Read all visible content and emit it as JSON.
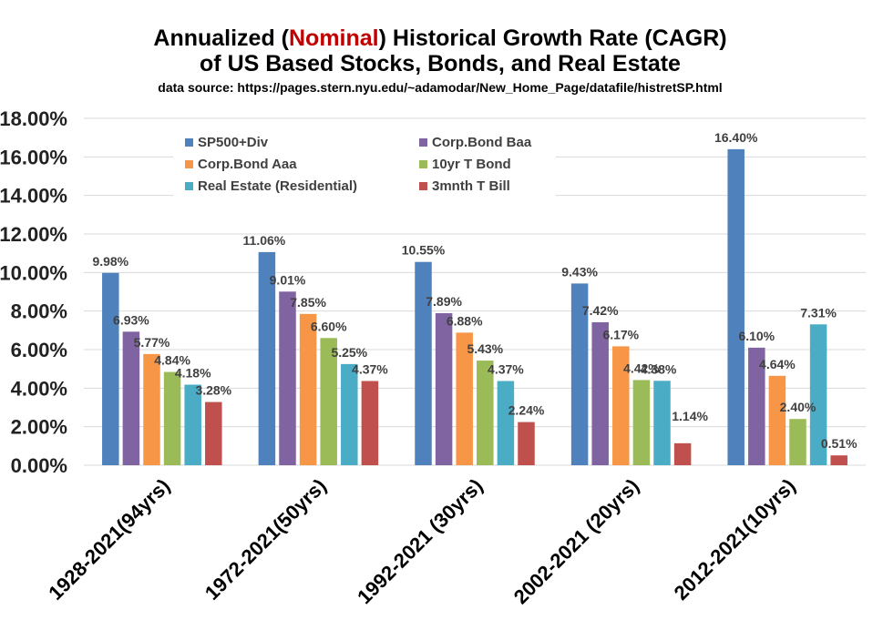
{
  "chart_data": {
    "type": "bar",
    "title_line1_prefix": "Annualized (",
    "title_line1_highlight": "Nominal",
    "title_line1_suffix": ") Historical Growth Rate (CAGR)",
    "title_line2": "of US Based Stocks, Bonds, and Real Estate",
    "subtitle": "data source: https://pages.stern.nyu.edu/~adamodar/New_Home_Page/datafile/histretSP.html",
    "xlabel": "",
    "ylabel": "",
    "ylim": [
      0,
      18
    ],
    "yticks": [
      0,
      2,
      4,
      6,
      8,
      10,
      12,
      14,
      16,
      18
    ],
    "ytick_labels": [
      "0.00%",
      "2.00%",
      "4.00%",
      "6.00%",
      "8.00%",
      "10.00%",
      "12.00%",
      "14.00%",
      "16.00%",
      "18.00%"
    ],
    "grid": true,
    "legend_position": "top-left",
    "categories": [
      "1928-2021(94yrs)",
      "1972-2021(50yrs)",
      "1992-2021 (30yrs)",
      "2002-2021 (20yrs)",
      "2012-2021(10yrs)"
    ],
    "series": [
      {
        "name": "SP500+Div",
        "color": "#4f81bd",
        "values": [
          9.98,
          11.06,
          10.55,
          9.43,
          16.4
        ],
        "labels": [
          "9.98%",
          "11.06%",
          "10.55%",
          "9.43%",
          "16.40%"
        ]
      },
      {
        "name": "Corp.Bond Baa",
        "color": "#8064a2",
        "values": [
          6.93,
          9.01,
          7.89,
          7.42,
          6.1
        ],
        "labels": [
          "6.93%",
          "9.01%",
          "7.89%",
          "7.42%",
          "6.10%"
        ]
      },
      {
        "name": "Corp.Bond Aaa",
        "color": "#f79646",
        "values": [
          5.77,
          7.85,
          6.88,
          6.17,
          4.64
        ],
        "labels": [
          "5.77%",
          "7.85%",
          "6.88%",
          "6.17%",
          "4.64%"
        ]
      },
      {
        "name": "10yr  T Bond",
        "color": "#9bbb59",
        "values": [
          4.84,
          6.6,
          5.43,
          4.42,
          2.4
        ],
        "labels": [
          "4.84%",
          "6.60%",
          "5.43%",
          "4.42%",
          "2.40%"
        ]
      },
      {
        "name": "Real Estate (Residential)",
        "color": "#4bacc6",
        "values": [
          4.18,
          5.25,
          4.37,
          4.38,
          7.31
        ],
        "labels": [
          "4.18%",
          "5.25%",
          "4.37%",
          "4.38%",
          "7.31%"
        ]
      },
      {
        "name": "3mnth T Bill",
        "color": "#c0504d",
        "values": [
          3.28,
          4.37,
          2.24,
          1.14,
          0.51
        ],
        "labels": [
          "3.28%",
          "4.37%",
          "2.24%",
          "1.14%",
          "0.51%"
        ]
      }
    ]
  }
}
